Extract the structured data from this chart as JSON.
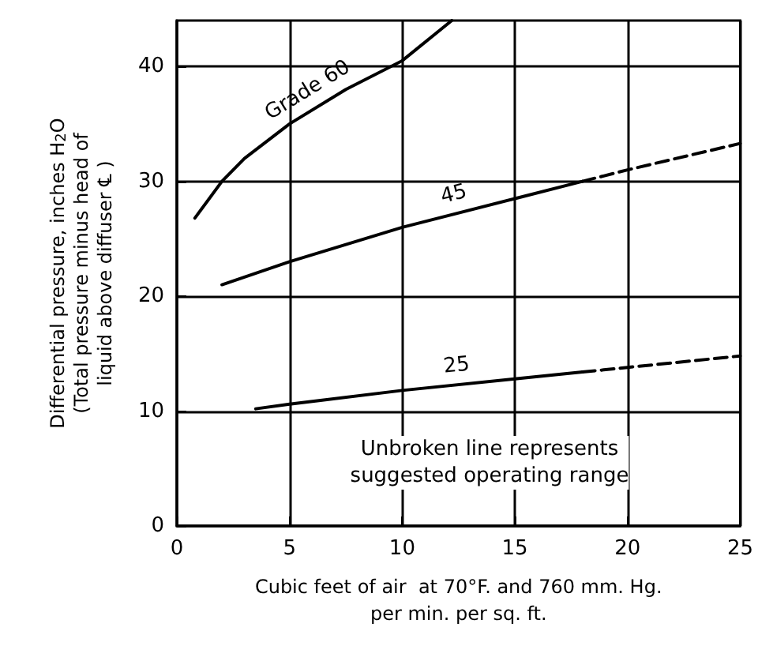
{
  "chart_data": {
    "type": "line",
    "xlabel": "Cubic feet of air  at 70°F. and 760 mm. Hg.\nper min. per sq. ft.",
    "ylabel": "Differential pressure, inches H$_{2}$O\n(Total pressure minus head of\nliquid above diffuser ℄ )",
    "xlim": [
      0,
      25
    ],
    "xticks": [
      0,
      5,
      10,
      15,
      20,
      25
    ],
    "ylim": [
      0,
      44
    ],
    "yticks": [
      0,
      10,
      20,
      30,
      40
    ],
    "grid": true,
    "legend": false,
    "marker": "none",
    "annotations": [
      "Unbroken line represents\nsuggested operating range"
    ],
    "series": [
      {
        "name": "Grade 60",
        "color": "#000000",
        "line_style": "solid",
        "x": [
          0.8,
          2,
          3,
          5,
          7.5,
          10,
          12.2
        ],
        "values": [
          26.8,
          30,
          32,
          35,
          38,
          40.5,
          44
        ]
      },
      {
        "name": "45",
        "color": "#000000",
        "line_style": "solid",
        "x": [
          2,
          5,
          10,
          15,
          18
        ],
        "values": [
          21,
          23,
          26,
          28.5,
          30
        ]
      },
      {
        "color": "#000000",
        "line_style": "dashed",
        "x": [
          18,
          20,
          25
        ],
        "values": [
          30,
          31,
          33.3
        ]
      },
      {
        "name": "25",
        "color": "#000000",
        "line_style": "solid",
        "x": [
          3.5,
          5,
          10,
          15,
          18
        ],
        "values": [
          10.2,
          10.6,
          11.8,
          12.8,
          13.4
        ]
      },
      {
        "color": "#000000",
        "line_style": "dashed",
        "x": [
          18,
          20,
          25
        ],
        "values": [
          13.4,
          13.8,
          14.8
        ]
      }
    ]
  }
}
